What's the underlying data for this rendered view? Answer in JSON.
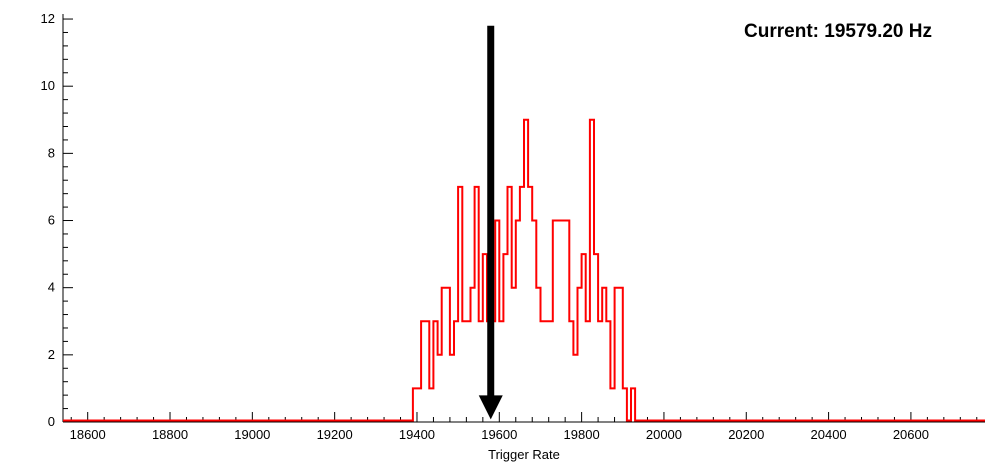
{
  "colors": {
    "histogram": "#ff0000",
    "arrow": "#000000",
    "axis": "#000000",
    "background": "#ffffff"
  },
  "chart_data": {
    "type": "bar",
    "title": "Current: 19579.20 Hz",
    "xlabel": "Trigger Rate",
    "ylabel": "",
    "xlim": [
      18540,
      20780
    ],
    "ylim": [
      0,
      12.15
    ],
    "grid": false,
    "legend": "none",
    "x_major_ticks": [
      18600,
      18800,
      19000,
      19200,
      19400,
      19600,
      19800,
      20000,
      20200,
      20400,
      20600
    ],
    "x_minor_step": 40,
    "y_major_ticks": [
      0,
      2,
      4,
      6,
      8,
      10,
      12
    ],
    "y_minor_step": 0.4,
    "bin_width": 10,
    "bins_start": 19390,
    "counts": [
      1,
      1,
      3,
      3,
      1,
      3,
      2,
      4,
      4,
      2,
      3,
      7,
      3,
      3,
      4,
      7,
      3,
      5,
      3,
      3,
      6,
      3,
      5,
      7,
      4,
      6,
      7,
      9,
      7,
      6,
      4,
      3,
      3,
      3,
      6,
      6,
      6,
      6,
      3,
      2,
      4,
      5,
      3,
      9,
      5,
      3,
      4,
      3,
      1,
      4,
      4,
      1,
      0,
      1
    ],
    "current_value": 19579.2,
    "annotation": {
      "label": "Current: 19579.20 Hz",
      "arrow_x": 19579.2,
      "arrow_top": 11.8,
      "arrow_tip": 0.08
    }
  }
}
